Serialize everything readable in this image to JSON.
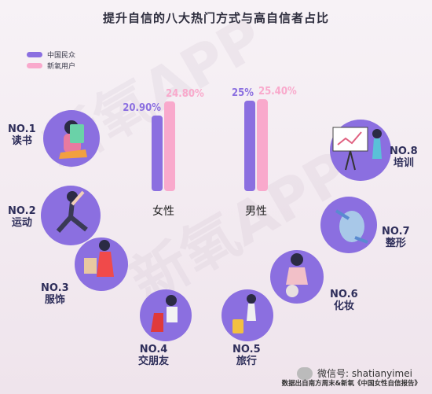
{
  "chart_data": {
    "type": "bar",
    "title": "提升自信的八大热门方式与高自信者占比",
    "categories": [
      "女性",
      "男性"
    ],
    "series": [
      {
        "name": "中国民众",
        "values": [
          20.9,
          25.0
        ],
        "labels": [
          "20.90%",
          "25%"
        ],
        "color": "#8b6fe0"
      },
      {
        "name": "新氧用户",
        "values": [
          24.8,
          25.4
        ],
        "labels": [
          "24.80%",
          "25.40%"
        ],
        "color": "#f9a9cc"
      }
    ],
    "ylim": [
      0,
      30
    ],
    "legend_position": "top-left"
  },
  "ways": [
    {
      "no": "NO.1",
      "name": "读书",
      "icon": "reading-person-icon"
    },
    {
      "no": "NO.2",
      "name": "运动",
      "icon": "exercise-person-icon"
    },
    {
      "no": "NO.3",
      "name": "服饰",
      "icon": "fashion-person-icon"
    },
    {
      "no": "NO.4",
      "name": "交朋友",
      "icon": "friends-chair-icon"
    },
    {
      "no": "NO.5",
      "name": "旅行",
      "icon": "travel-suitcase-icon"
    },
    {
      "no": "NO.6",
      "name": "化妆",
      "icon": "makeup-mirror-icon"
    },
    {
      "no": "NO.7",
      "name": "整形",
      "icon": "face-contour-icon"
    },
    {
      "no": "NO.8",
      "name": "培训",
      "icon": "training-board-icon"
    }
  ],
  "colors": {
    "purple": "#8b6fe0",
    "pink": "#f9a9cc",
    "dark": "#2e2e5a"
  },
  "watermark": "新氧APP",
  "wechat_label": "微信号: shatianyimei",
  "source": "数据出自南方周末&新氧《中国女性自信报告》"
}
